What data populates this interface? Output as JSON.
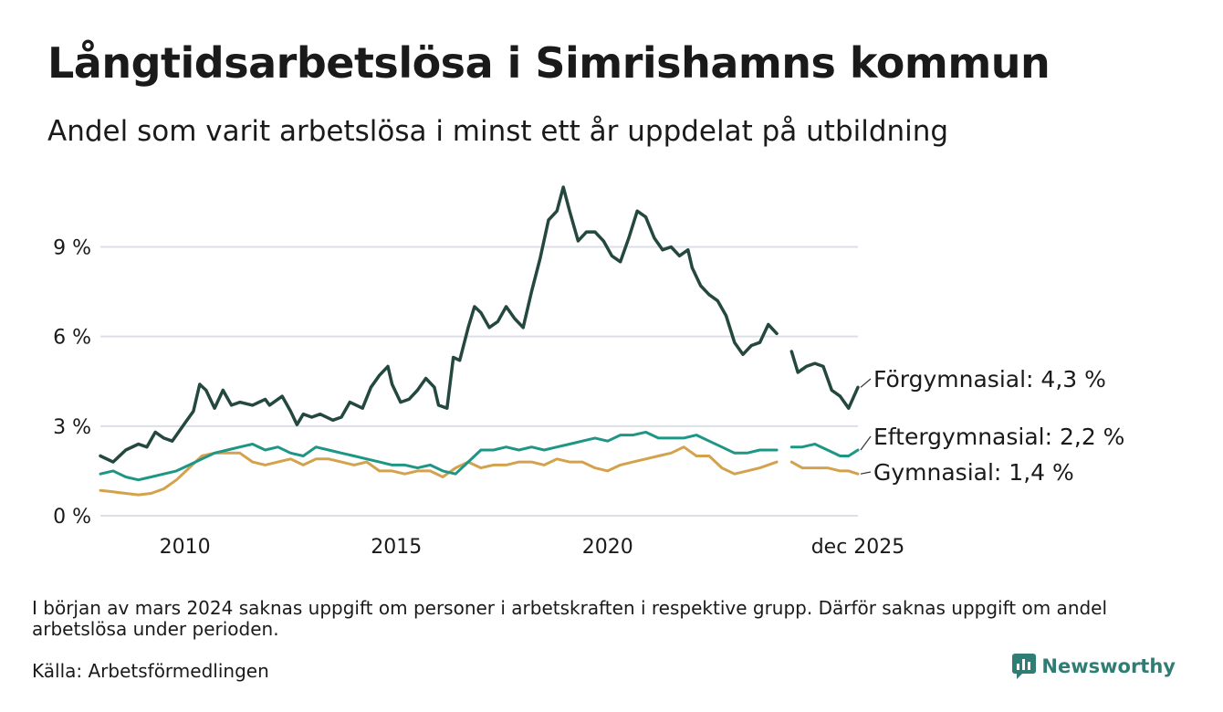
{
  "header": {
    "title": "Långtidsarbetslösa i Simrishamns kommun",
    "subtitle": "Andel som varit arbetslösa i minst ett år uppdelat på utbildning"
  },
  "footer": {
    "note": "I början av mars 2024 saknas uppgift om personer i arbetskraften i respektive grupp. Därför saknas uppgift om andel arbetslösa under perioden.",
    "source": "Källa: Arbetsförmedlingen",
    "brand": "Newsworthy",
    "brand_icon": "bar-chart-logo-icon"
  },
  "colors": {
    "forgymnasial": "#24483f",
    "eftergymnasial": "#1e9686",
    "gymnasial": "#d4a24c",
    "grid": "#dcdfe6"
  },
  "chart_data": {
    "type": "line",
    "title": "Långtidsarbetslösa i Simrishamns kommun",
    "xlabel": "",
    "ylabel": "",
    "ylim": [
      0,
      11
    ],
    "xlim": [
      2008.0,
      2025.92
    ],
    "yticks": [
      0,
      3,
      6,
      9
    ],
    "ytick_labels": [
      "0 %",
      "3 %",
      "6 %",
      "9 %"
    ],
    "xticks": [
      2010,
      2015,
      2020,
      2025.92
    ],
    "xtick_labels": [
      "2010",
      "2015",
      "2020",
      "dec 2025"
    ],
    "gap": [
      2024.0,
      2024.35
    ],
    "series": [
      {
        "key": "forgymnasial",
        "name": "Förgymnasial",
        "end_label": "Förgymnasial: 4,3 %",
        "points": [
          [
            2008.0,
            2.0
          ],
          [
            2008.3,
            1.8
          ],
          [
            2008.6,
            2.2
          ],
          [
            2008.9,
            2.4
          ],
          [
            2009.1,
            2.3
          ],
          [
            2009.3,
            2.8
          ],
          [
            2009.5,
            2.6
          ],
          [
            2009.7,
            2.5
          ],
          [
            2010.0,
            3.1
          ],
          [
            2010.2,
            3.5
          ],
          [
            2010.35,
            4.4
          ],
          [
            2010.5,
            4.2
          ],
          [
            2010.7,
            3.6
          ],
          [
            2010.9,
            4.2
          ],
          [
            2011.1,
            3.7
          ],
          [
            2011.3,
            3.8
          ],
          [
            2011.6,
            3.7
          ],
          [
            2011.9,
            3.9
          ],
          [
            2012.0,
            3.7
          ],
          [
            2012.3,
            4.0
          ],
          [
            2012.5,
            3.5
          ],
          [
            2012.65,
            3.05
          ],
          [
            2012.8,
            3.4
          ],
          [
            2013.0,
            3.3
          ],
          [
            2013.2,
            3.4
          ],
          [
            2013.5,
            3.2
          ],
          [
            2013.7,
            3.3
          ],
          [
            2013.9,
            3.8
          ],
          [
            2014.2,
            3.6
          ],
          [
            2014.4,
            4.3
          ],
          [
            2014.6,
            4.7
          ],
          [
            2014.8,
            5.0
          ],
          [
            2014.9,
            4.4
          ],
          [
            2015.1,
            3.8
          ],
          [
            2015.3,
            3.9
          ],
          [
            2015.5,
            4.2
          ],
          [
            2015.7,
            4.6
          ],
          [
            2015.9,
            4.3
          ],
          [
            2016.0,
            3.7
          ],
          [
            2016.2,
            3.6
          ],
          [
            2016.35,
            5.3
          ],
          [
            2016.5,
            5.2
          ],
          [
            2016.7,
            6.3
          ],
          [
            2016.85,
            7.0
          ],
          [
            2017.0,
            6.8
          ],
          [
            2017.2,
            6.3
          ],
          [
            2017.4,
            6.5
          ],
          [
            2017.6,
            7.0
          ],
          [
            2017.8,
            6.6
          ],
          [
            2018.0,
            6.3
          ],
          [
            2018.2,
            7.5
          ],
          [
            2018.4,
            8.6
          ],
          [
            2018.6,
            9.9
          ],
          [
            2018.8,
            10.2
          ],
          [
            2018.95,
            11.0
          ],
          [
            2019.1,
            10.2
          ],
          [
            2019.3,
            9.2
          ],
          [
            2019.5,
            9.5
          ],
          [
            2019.7,
            9.5
          ],
          [
            2019.9,
            9.2
          ],
          [
            2020.1,
            8.7
          ],
          [
            2020.3,
            8.5
          ],
          [
            2020.5,
            9.3
          ],
          [
            2020.7,
            10.2
          ],
          [
            2020.9,
            10.0
          ],
          [
            2021.1,
            9.3
          ],
          [
            2021.3,
            8.9
          ],
          [
            2021.5,
            9.0
          ],
          [
            2021.7,
            8.7
          ],
          [
            2021.9,
            8.9
          ],
          [
            2022.0,
            8.3
          ],
          [
            2022.2,
            7.7
          ],
          [
            2022.4,
            7.4
          ],
          [
            2022.6,
            7.2
          ],
          [
            2022.8,
            6.7
          ],
          [
            2023.0,
            5.8
          ],
          [
            2023.2,
            5.4
          ],
          [
            2023.4,
            5.7
          ],
          [
            2023.6,
            5.8
          ],
          [
            2023.8,
            6.4
          ],
          [
            2024.0,
            6.1
          ],
          [
            2024.35,
            5.5
          ],
          [
            2024.5,
            4.8
          ],
          [
            2024.7,
            5.0
          ],
          [
            2024.9,
            5.1
          ],
          [
            2025.1,
            5.0
          ],
          [
            2025.3,
            4.2
          ],
          [
            2025.5,
            4.0
          ],
          [
            2025.7,
            3.6
          ],
          [
            2025.92,
            4.3
          ]
        ]
      },
      {
        "key": "eftergymnasial",
        "name": "Eftergymnasial",
        "end_label": "Eftergymnasial: 2,2 %",
        "points": [
          [
            2008.0,
            1.4
          ],
          [
            2008.3,
            1.5
          ],
          [
            2008.6,
            1.3
          ],
          [
            2008.9,
            1.2
          ],
          [
            2009.2,
            1.3
          ],
          [
            2009.5,
            1.4
          ],
          [
            2009.8,
            1.5
          ],
          [
            2010.1,
            1.7
          ],
          [
            2010.4,
            1.9
          ],
          [
            2010.7,
            2.1
          ],
          [
            2011.0,
            2.2
          ],
          [
            2011.3,
            2.3
          ],
          [
            2011.6,
            2.4
          ],
          [
            2011.9,
            2.2
          ],
          [
            2012.2,
            2.3
          ],
          [
            2012.5,
            2.1
          ],
          [
            2012.8,
            2.0
          ],
          [
            2013.1,
            2.3
          ],
          [
            2013.4,
            2.2
          ],
          [
            2013.7,
            2.1
          ],
          [
            2014.0,
            2.0
          ],
          [
            2014.3,
            1.9
          ],
          [
            2014.6,
            1.8
          ],
          [
            2014.9,
            1.7
          ],
          [
            2015.2,
            1.7
          ],
          [
            2015.5,
            1.6
          ],
          [
            2015.8,
            1.7
          ],
          [
            2016.1,
            1.5
          ],
          [
            2016.4,
            1.4
          ],
          [
            2016.7,
            1.8
          ],
          [
            2017.0,
            2.2
          ],
          [
            2017.3,
            2.2
          ],
          [
            2017.6,
            2.3
          ],
          [
            2017.9,
            2.2
          ],
          [
            2018.2,
            2.3
          ],
          [
            2018.5,
            2.2
          ],
          [
            2018.8,
            2.3
          ],
          [
            2019.1,
            2.4
          ],
          [
            2019.4,
            2.5
          ],
          [
            2019.7,
            2.6
          ],
          [
            2020.0,
            2.5
          ],
          [
            2020.3,
            2.7
          ],
          [
            2020.6,
            2.7
          ],
          [
            2020.9,
            2.8
          ],
          [
            2021.2,
            2.6
          ],
          [
            2021.5,
            2.6
          ],
          [
            2021.8,
            2.6
          ],
          [
            2022.1,
            2.7
          ],
          [
            2022.4,
            2.5
          ],
          [
            2022.7,
            2.3
          ],
          [
            2023.0,
            2.1
          ],
          [
            2023.3,
            2.1
          ],
          [
            2023.6,
            2.2
          ],
          [
            2024.0,
            2.2
          ],
          [
            2024.35,
            2.3
          ],
          [
            2024.6,
            2.3
          ],
          [
            2024.9,
            2.4
          ],
          [
            2025.2,
            2.2
          ],
          [
            2025.5,
            2.0
          ],
          [
            2025.7,
            2.0
          ],
          [
            2025.92,
            2.2
          ]
        ]
      },
      {
        "key": "gymnasial",
        "name": "Gymnasial",
        "end_label": "Gymnasial: 1,4 %",
        "points": [
          [
            2008.0,
            0.85
          ],
          [
            2008.3,
            0.8
          ],
          [
            2008.6,
            0.75
          ],
          [
            2008.9,
            0.7
          ],
          [
            2009.2,
            0.75
          ],
          [
            2009.5,
            0.9
          ],
          [
            2009.8,
            1.2
          ],
          [
            2010.1,
            1.6
          ],
          [
            2010.4,
            2.0
          ],
          [
            2010.7,
            2.1
          ],
          [
            2011.0,
            2.1
          ],
          [
            2011.3,
            2.1
          ],
          [
            2011.6,
            1.8
          ],
          [
            2011.9,
            1.7
          ],
          [
            2012.2,
            1.8
          ],
          [
            2012.5,
            1.9
          ],
          [
            2012.8,
            1.7
          ],
          [
            2013.1,
            1.9
          ],
          [
            2013.4,
            1.9
          ],
          [
            2013.7,
            1.8
          ],
          [
            2014.0,
            1.7
          ],
          [
            2014.3,
            1.8
          ],
          [
            2014.6,
            1.5
          ],
          [
            2014.9,
            1.5
          ],
          [
            2015.2,
            1.4
          ],
          [
            2015.5,
            1.5
          ],
          [
            2015.8,
            1.5
          ],
          [
            2016.1,
            1.3
          ],
          [
            2016.4,
            1.6
          ],
          [
            2016.7,
            1.8
          ],
          [
            2017.0,
            1.6
          ],
          [
            2017.3,
            1.7
          ],
          [
            2017.6,
            1.7
          ],
          [
            2017.9,
            1.8
          ],
          [
            2018.2,
            1.8
          ],
          [
            2018.5,
            1.7
          ],
          [
            2018.8,
            1.9
          ],
          [
            2019.1,
            1.8
          ],
          [
            2019.4,
            1.8
          ],
          [
            2019.7,
            1.6
          ],
          [
            2020.0,
            1.5
          ],
          [
            2020.3,
            1.7
          ],
          [
            2020.6,
            1.8
          ],
          [
            2020.9,
            1.9
          ],
          [
            2021.2,
            2.0
          ],
          [
            2021.5,
            2.1
          ],
          [
            2021.8,
            2.3
          ],
          [
            2022.1,
            2.0
          ],
          [
            2022.4,
            2.0
          ],
          [
            2022.7,
            1.6
          ],
          [
            2023.0,
            1.4
          ],
          [
            2023.3,
            1.5
          ],
          [
            2023.6,
            1.6
          ],
          [
            2024.0,
            1.8
          ],
          [
            2024.35,
            1.8
          ],
          [
            2024.6,
            1.6
          ],
          [
            2024.9,
            1.6
          ],
          [
            2025.2,
            1.6
          ],
          [
            2025.5,
            1.5
          ],
          [
            2025.7,
            1.5
          ],
          [
            2025.92,
            1.4
          ]
        ]
      }
    ]
  }
}
